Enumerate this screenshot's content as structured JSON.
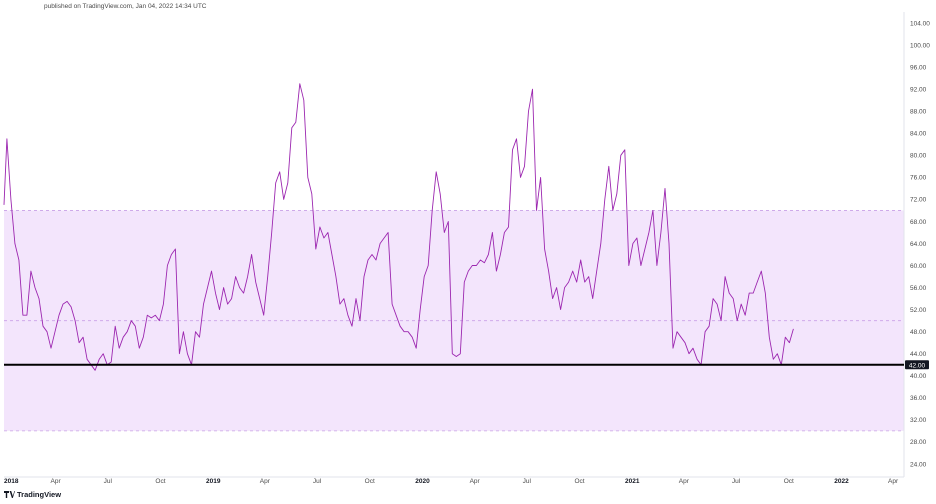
{
  "header": {
    "published": "published on TradingView.com, Jan 04, 2022 14:34 UTC"
  },
  "brand": {
    "name": "TradingView",
    "logo_icon": "tradingview-logo-icon"
  },
  "chart_data": {
    "type": "line",
    "colors": {
      "line": "#9c27b0",
      "band": "#f3e5fc",
      "band_edge": "#c9a2e6",
      "level": "#000000",
      "axis_text": "#4a4a4a"
    },
    "y_axis": {
      "min": 22,
      "max": 106,
      "ticks": [
        24,
        28,
        32,
        36,
        40,
        44,
        48,
        52,
        56,
        60,
        64,
        68,
        72,
        76,
        80,
        84,
        88,
        92,
        96,
        100,
        104
      ],
      "position": "right"
    },
    "x_axis": {
      "min": "2018-01-01",
      "max": "2022-04-20",
      "ticks": [
        {
          "label": "2018",
          "date": "2018-01-01"
        },
        {
          "label": "Apr",
          "date": "2018-04-01"
        },
        {
          "label": "Jul",
          "date": "2018-07-01"
        },
        {
          "label": "Oct",
          "date": "2018-10-01"
        },
        {
          "label": "2019",
          "date": "2019-01-01"
        },
        {
          "label": "Apr",
          "date": "2019-04-01"
        },
        {
          "label": "Jul",
          "date": "2019-07-01"
        },
        {
          "label": "Oct",
          "date": "2019-10-01"
        },
        {
          "label": "2020",
          "date": "2020-01-01"
        },
        {
          "label": "Apr",
          "date": "2020-04-01"
        },
        {
          "label": "Jul",
          "date": "2020-07-01"
        },
        {
          "label": "Oct",
          "date": "2020-10-01"
        },
        {
          "label": "2021",
          "date": "2021-01-01"
        },
        {
          "label": "Apr",
          "date": "2021-04-01"
        },
        {
          "label": "Jul",
          "date": "2021-07-01"
        },
        {
          "label": "Oct",
          "date": "2021-10-01"
        },
        {
          "label": "2022",
          "date": "2022-01-01"
        },
        {
          "label": "Apr",
          "date": "2022-04-01"
        }
      ]
    },
    "band": {
      "upper": 70,
      "lower": 30,
      "middle": 50
    },
    "level": {
      "value": 42,
      "label": "42.00"
    },
    "series": [
      {
        "values": [
          [
            "2018-01-01",
            71
          ],
          [
            "2018-01-06",
            83
          ],
          [
            "2018-01-13",
            72
          ],
          [
            "2018-01-20",
            64
          ],
          [
            "2018-01-27",
            61
          ],
          [
            "2018-02-03",
            51
          ],
          [
            "2018-02-10",
            51
          ],
          [
            "2018-02-17",
            59
          ],
          [
            "2018-02-24",
            56
          ],
          [
            "2018-03-03",
            54
          ],
          [
            "2018-03-10",
            49
          ],
          [
            "2018-03-17",
            48
          ],
          [
            "2018-03-24",
            45
          ],
          [
            "2018-03-31",
            48
          ],
          [
            "2018-04-07",
            51
          ],
          [
            "2018-04-14",
            53
          ],
          [
            "2018-04-21",
            53.5
          ],
          [
            "2018-04-28",
            52.5
          ],
          [
            "2018-05-05",
            50
          ],
          [
            "2018-05-12",
            46
          ],
          [
            "2018-05-19",
            47
          ],
          [
            "2018-05-26",
            43
          ],
          [
            "2018-06-02",
            42
          ],
          [
            "2018-06-09",
            41
          ],
          [
            "2018-06-16",
            43
          ],
          [
            "2018-06-23",
            44
          ],
          [
            "2018-06-30",
            42
          ],
          [
            "2018-07-07",
            42.5
          ],
          [
            "2018-07-14",
            49
          ],
          [
            "2018-07-21",
            45
          ],
          [
            "2018-07-28",
            47
          ],
          [
            "2018-08-04",
            48
          ],
          [
            "2018-08-11",
            50
          ],
          [
            "2018-08-18",
            49
          ],
          [
            "2018-08-25",
            45
          ],
          [
            "2018-09-01",
            47
          ],
          [
            "2018-09-08",
            51
          ],
          [
            "2018-09-15",
            50.5
          ],
          [
            "2018-09-22",
            51
          ],
          [
            "2018-09-29",
            50
          ],
          [
            "2018-10-06",
            53
          ],
          [
            "2018-10-13",
            60
          ],
          [
            "2018-10-20",
            62
          ],
          [
            "2018-10-27",
            63
          ],
          [
            "2018-11-03",
            44
          ],
          [
            "2018-11-10",
            48
          ],
          [
            "2018-11-17",
            44
          ],
          [
            "2018-11-24",
            42
          ],
          [
            "2018-12-01",
            48
          ],
          [
            "2018-12-08",
            47
          ],
          [
            "2018-12-15",
            53
          ],
          [
            "2018-12-22",
            56
          ],
          [
            "2018-12-29",
            59
          ],
          [
            "2019-01-05",
            55
          ],
          [
            "2019-01-12",
            52
          ],
          [
            "2019-01-19",
            56
          ],
          [
            "2019-01-26",
            53
          ],
          [
            "2019-02-02",
            54
          ],
          [
            "2019-02-09",
            58
          ],
          [
            "2019-02-16",
            56
          ],
          [
            "2019-02-23",
            55
          ],
          [
            "2019-03-02",
            58
          ],
          [
            "2019-03-09",
            62
          ],
          [
            "2019-03-16",
            57
          ],
          [
            "2019-03-23",
            54
          ],
          [
            "2019-03-30",
            51
          ],
          [
            "2019-04-06",
            58
          ],
          [
            "2019-04-13",
            66
          ],
          [
            "2019-04-20",
            75
          ],
          [
            "2019-04-27",
            77
          ],
          [
            "2019-05-04",
            72
          ],
          [
            "2019-05-11",
            75
          ],
          [
            "2019-05-18",
            85
          ],
          [
            "2019-05-25",
            86
          ],
          [
            "2019-06-01",
            93
          ],
          [
            "2019-06-08",
            90
          ],
          [
            "2019-06-15",
            76
          ],
          [
            "2019-06-22",
            73
          ],
          [
            "2019-06-29",
            63
          ],
          [
            "2019-07-06",
            67
          ],
          [
            "2019-07-13",
            65
          ],
          [
            "2019-07-20",
            66
          ],
          [
            "2019-07-27",
            62
          ],
          [
            "2019-08-03",
            58
          ],
          [
            "2019-08-10",
            53
          ],
          [
            "2019-08-17",
            54
          ],
          [
            "2019-08-24",
            51
          ],
          [
            "2019-08-31",
            49
          ],
          [
            "2019-09-07",
            54
          ],
          [
            "2019-09-14",
            50
          ],
          [
            "2019-09-21",
            58
          ],
          [
            "2019-09-28",
            61
          ],
          [
            "2019-10-05",
            62
          ],
          [
            "2019-10-12",
            61
          ],
          [
            "2019-10-19",
            64
          ],
          [
            "2019-10-26",
            65
          ],
          [
            "2019-11-02",
            66
          ],
          [
            "2019-11-09",
            53
          ],
          [
            "2019-11-16",
            51
          ],
          [
            "2019-11-23",
            49
          ],
          [
            "2019-11-30",
            48
          ],
          [
            "2019-12-07",
            48
          ],
          [
            "2019-12-14",
            47
          ],
          [
            "2019-12-21",
            45
          ],
          [
            "2019-12-28",
            52
          ],
          [
            "2020-01-04",
            58
          ],
          [
            "2020-01-11",
            60
          ],
          [
            "2020-01-18",
            70
          ],
          [
            "2020-01-25",
            77
          ],
          [
            "2020-02-01",
            73
          ],
          [
            "2020-02-08",
            66
          ],
          [
            "2020-02-15",
            68
          ],
          [
            "2020-02-22",
            44
          ],
          [
            "2020-02-29",
            43.5
          ],
          [
            "2020-03-07",
            44
          ],
          [
            "2020-03-14",
            57
          ],
          [
            "2020-03-21",
            59
          ],
          [
            "2020-03-28",
            60
          ],
          [
            "2020-04-04",
            60
          ],
          [
            "2020-04-11",
            61
          ],
          [
            "2020-04-18",
            60.5
          ],
          [
            "2020-04-25",
            62
          ],
          [
            "2020-05-02",
            66
          ],
          [
            "2020-05-09",
            59
          ],
          [
            "2020-05-16",
            62
          ],
          [
            "2020-05-23",
            66
          ],
          [
            "2020-05-30",
            67
          ],
          [
            "2020-06-06",
            81
          ],
          [
            "2020-06-13",
            83
          ],
          [
            "2020-06-20",
            76
          ],
          [
            "2020-06-27",
            78
          ],
          [
            "2020-07-04",
            88
          ],
          [
            "2020-07-11",
            92
          ],
          [
            "2020-07-18",
            70
          ],
          [
            "2020-07-25",
            76
          ],
          [
            "2020-08-01",
            63
          ],
          [
            "2020-08-08",
            59
          ],
          [
            "2020-08-15",
            54
          ],
          [
            "2020-08-22",
            56
          ],
          [
            "2020-08-29",
            52
          ],
          [
            "2020-09-05",
            56
          ],
          [
            "2020-09-12",
            57
          ],
          [
            "2020-09-19",
            59
          ],
          [
            "2020-09-26",
            57
          ],
          [
            "2020-10-03",
            61
          ],
          [
            "2020-10-10",
            57
          ],
          [
            "2020-10-17",
            58
          ],
          [
            "2020-10-24",
            54
          ],
          [
            "2020-10-31",
            59
          ],
          [
            "2020-11-07",
            64
          ],
          [
            "2020-11-14",
            72
          ],
          [
            "2020-11-21",
            78
          ],
          [
            "2020-11-28",
            70
          ],
          [
            "2020-12-05",
            73
          ],
          [
            "2020-12-12",
            80
          ],
          [
            "2020-12-19",
            81
          ],
          [
            "2020-12-26",
            60
          ],
          [
            "2021-01-02",
            64
          ],
          [
            "2021-01-09",
            65
          ],
          [
            "2021-01-16",
            60
          ],
          [
            "2021-01-23",
            63
          ],
          [
            "2021-01-30",
            66
          ],
          [
            "2021-02-06",
            70
          ],
          [
            "2021-02-13",
            60
          ],
          [
            "2021-02-20",
            66
          ],
          [
            "2021-02-27",
            74
          ],
          [
            "2021-03-06",
            64
          ],
          [
            "2021-03-13",
            45
          ],
          [
            "2021-03-20",
            48
          ],
          [
            "2021-03-27",
            47
          ],
          [
            "2021-04-03",
            46
          ],
          [
            "2021-04-10",
            44
          ],
          [
            "2021-04-17",
            45
          ],
          [
            "2021-04-24",
            43
          ],
          [
            "2021-05-01",
            42
          ],
          [
            "2021-05-08",
            48
          ],
          [
            "2021-05-15",
            49
          ],
          [
            "2021-05-22",
            54
          ],
          [
            "2021-05-29",
            53
          ],
          [
            "2021-06-05",
            50
          ],
          [
            "2021-06-12",
            58
          ],
          [
            "2021-06-19",
            55
          ],
          [
            "2021-06-26",
            54
          ],
          [
            "2021-07-03",
            50
          ],
          [
            "2021-07-10",
            53
          ],
          [
            "2021-07-17",
            51
          ],
          [
            "2021-07-24",
            55
          ],
          [
            "2021-07-31",
            55
          ],
          [
            "2021-08-07",
            57
          ],
          [
            "2021-08-14",
            59
          ],
          [
            "2021-08-21",
            55
          ],
          [
            "2021-08-28",
            47
          ],
          [
            "2021-09-04",
            43
          ],
          [
            "2021-09-11",
            44
          ],
          [
            "2021-09-18",
            42
          ],
          [
            "2021-09-25",
            47
          ],
          [
            "2021-10-02",
            46
          ],
          [
            "2021-10-09",
            48.5
          ]
        ]
      }
    ]
  }
}
